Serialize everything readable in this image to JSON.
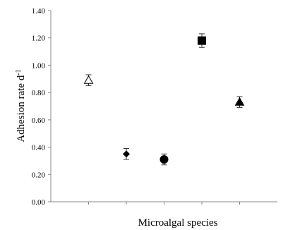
{
  "chart_data": {
    "type": "scatter",
    "title": "",
    "xlabel": "Microalgal species",
    "ylabel": "Adhesion rate d",
    "ylabel_superscript": "-1",
    "ylim": [
      0,
      1.4
    ],
    "yticks": [
      "0.00",
      "0.20",
      "0.40",
      "0.60",
      "0.80",
      "1.00",
      "1.20",
      "1.40"
    ],
    "grid": false,
    "legend": "none",
    "points": [
      {
        "index": 1,
        "value": 0.89,
        "error": 0.04,
        "marker": "triangle-open"
      },
      {
        "index": 2,
        "value": 0.35,
        "error": 0.04,
        "marker": "diamond"
      },
      {
        "index": 3,
        "value": 0.31,
        "error": 0.04,
        "marker": "circle"
      },
      {
        "index": 4,
        "value": 1.18,
        "error": 0.05,
        "marker": "square"
      },
      {
        "index": 5,
        "value": 0.73,
        "error": 0.04,
        "marker": "triangle"
      }
    ]
  }
}
